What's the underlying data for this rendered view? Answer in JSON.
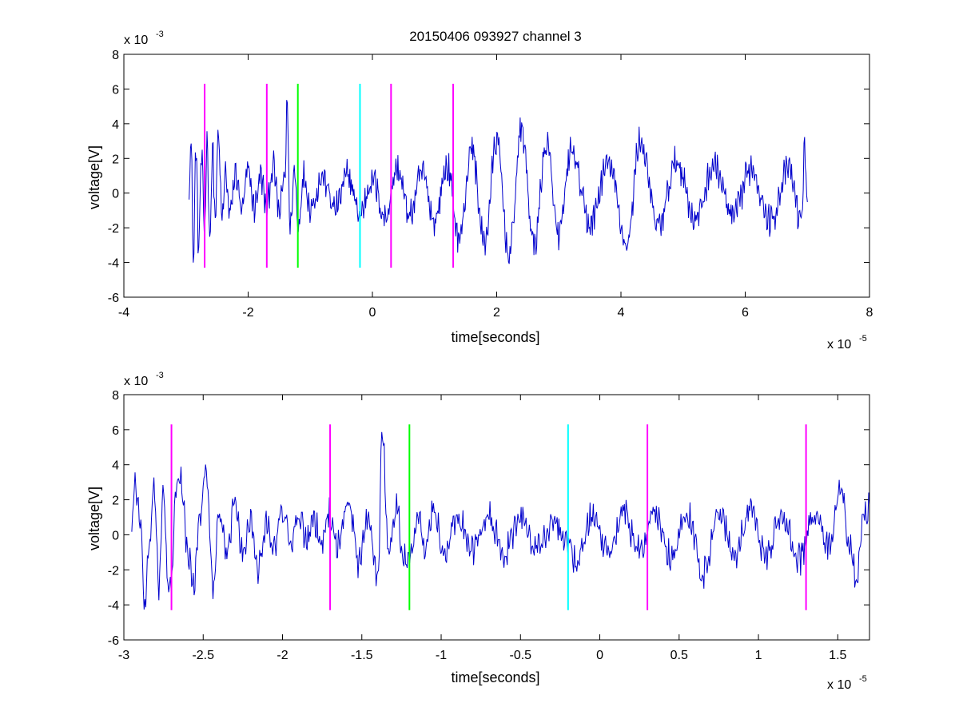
{
  "chart_data": [
    {
      "type": "line",
      "title": "20150406 093927 channel 3",
      "xlabel": "time[seconds]",
      "ylabel": "voltage[V]",
      "x_exponent_text": "x 10",
      "x_exponent": "-5",
      "y_exponent_text": "x 10",
      "y_exponent": "-3",
      "xlim": [
        -4,
        8
      ],
      "ylim": [
        -6,
        8
      ],
      "xticks": [
        "-4",
        "-2",
        "0",
        "2",
        "4",
        "6",
        "8"
      ],
      "yticks": [
        "-6",
        "-4",
        "-2",
        "0",
        "2",
        "4",
        "6",
        "8"
      ],
      "signal_color": "#0000cc",
      "series": [
        {
          "signal_x_range": [
            -2.95,
            7.0
          ],
          "control_points": [
            [
              -2.95,
              0.3
            ],
            [
              -2.92,
              3.1
            ],
            [
              -2.88,
              -3.9
            ],
            [
              -2.84,
              2.9
            ],
            [
              -2.8,
              -3.2
            ],
            [
              -2.75,
              2.0
            ],
            [
              -2.7,
              -2.2
            ],
            [
              -2.66,
              3.3
            ],
            [
              -2.62,
              -2.5
            ],
            [
              -2.57,
              2.5
            ],
            [
              -2.53,
              -1.5
            ],
            [
              -2.48,
              3.3
            ],
            [
              -2.42,
              -1.5
            ],
            [
              -2.36,
              1.2
            ],
            [
              -2.3,
              -1.3
            ],
            [
              -2.2,
              1.1
            ],
            [
              -2.1,
              -1.0
            ],
            [
              -2.0,
              1.3
            ],
            [
              -1.9,
              -0.8
            ],
            [
              -1.8,
              1.0
            ],
            [
              -1.7,
              -0.9
            ],
            [
              -1.6,
              1.6
            ],
            [
              -1.5,
              -1.1
            ],
            [
              -1.4,
              1.3
            ],
            [
              -1.37,
              5.7
            ],
            [
              -1.33,
              -2.0
            ],
            [
              -1.25,
              1.3
            ],
            [
              -1.2,
              -1.8
            ],
            [
              -1.1,
              1.0
            ],
            [
              -1.0,
              -0.8
            ],
            [
              -0.8,
              0.9
            ],
            [
              -0.6,
              -0.9
            ],
            [
              -0.4,
              1.0
            ],
            [
              -0.2,
              -1.2
            ],
            [
              0.0,
              0.8
            ],
            [
              0.2,
              -1.4
            ],
            [
              0.4,
              1.4
            ],
            [
              0.6,
              -1.3
            ],
            [
              0.8,
              1.2
            ],
            [
              1.0,
              -1.6
            ],
            [
              1.2,
              1.5
            ],
            [
              1.4,
              -2.6
            ],
            [
              1.6,
              2.6
            ],
            [
              1.8,
              -2.9
            ],
            [
              2.0,
              3.0
            ],
            [
              2.2,
              -3.6
            ],
            [
              2.4,
              3.7
            ],
            [
              2.6,
              -3.0
            ],
            [
              2.8,
              2.8
            ],
            [
              3.0,
              -2.5
            ],
            [
              3.2,
              2.4
            ],
            [
              3.5,
              -1.8
            ],
            [
              3.8,
              1.7
            ],
            [
              4.1,
              -3.0
            ],
            [
              4.3,
              3.0
            ],
            [
              4.6,
              -1.9
            ],
            [
              4.9,
              1.8
            ],
            [
              5.2,
              -1.5
            ],
            [
              5.5,
              1.6
            ],
            [
              5.8,
              -1.4
            ],
            [
              6.1,
              1.5
            ],
            [
              6.4,
              -1.6
            ],
            [
              6.7,
              1.4
            ],
            [
              6.9,
              -1.6
            ],
            [
              6.96,
              2.6
            ],
            [
              7.0,
              -0.5
            ]
          ]
        }
      ],
      "markers": [
        {
          "x": -2.7,
          "color": "#ff00ff"
        },
        {
          "x": -1.7,
          "color": "#ff00ff"
        },
        {
          "x": -1.2,
          "color": "#00ff00"
        },
        {
          "x": -0.2,
          "color": "#00ffff"
        },
        {
          "x": 0.3,
          "color": "#ff00ff"
        },
        {
          "x": 1.3,
          "color": "#ff00ff"
        }
      ],
      "marker_yrange": [
        -4.3,
        6.3
      ]
    },
    {
      "type": "line",
      "title": "",
      "xlabel": "time[seconds]",
      "ylabel": "voltage[V]",
      "x_exponent_text": "x 10",
      "x_exponent": "-5",
      "y_exponent_text": "x 10",
      "y_exponent": "-3",
      "xlim": [
        -3.0,
        1.7
      ],
      "ylim": [
        -6,
        8
      ],
      "xticks": [
        "-3",
        "-2.5",
        "-2",
        "-1.5",
        "-1",
        "-0.5",
        "0",
        "0.5",
        "1",
        "1.5"
      ],
      "xtick_values": [
        -3,
        -2.5,
        -2,
        -1.5,
        -1,
        -0.5,
        0,
        0.5,
        1,
        1.5
      ],
      "yticks": [
        "-6",
        "-4",
        "-2",
        "0",
        "2",
        "4",
        "6",
        "8"
      ],
      "signal_color": "#0000cc",
      "series": [
        {
          "signal_x_range": [
            -2.95,
            1.7
          ],
          "control_points": [
            [
              -2.95,
              0.3
            ],
            [
              -2.93,
              3.1
            ],
            [
              -2.9,
              1.0
            ],
            [
              -2.87,
              -3.9
            ],
            [
              -2.84,
              -1.0
            ],
            [
              -2.81,
              3.0
            ],
            [
              -2.78,
              -3.0
            ],
            [
              -2.75,
              2.2
            ],
            [
              -2.72,
              -3.3
            ],
            [
              -2.7,
              -2.5
            ],
            [
              -2.67,
              2.5
            ],
            [
              -2.64,
              3.2
            ],
            [
              -2.6,
              -1.0
            ],
            [
              -2.56,
              -2.9
            ],
            [
              -2.52,
              1.5
            ],
            [
              -2.48,
              3.7
            ],
            [
              -2.44,
              -3.0
            ],
            [
              -2.4,
              1.2
            ],
            [
              -2.35,
              -1.2
            ],
            [
              -2.3,
              2.2
            ],
            [
              -2.25,
              -1.0
            ],
            [
              -2.2,
              1.0
            ],
            [
              -2.15,
              -2.0
            ],
            [
              -2.1,
              0.8
            ],
            [
              -2.05,
              -0.8
            ],
            [
              -2.0,
              1.3
            ],
            [
              -1.95,
              -0.7
            ],
            [
              -1.9,
              1.2
            ],
            [
              -1.85,
              -0.5
            ],
            [
              -1.8,
              0.8
            ],
            [
              -1.75,
              -0.6
            ],
            [
              -1.7,
              1.2
            ],
            [
              -1.65,
              -0.6
            ],
            [
              -1.58,
              1.9
            ],
            [
              -1.52,
              -1.6
            ],
            [
              -1.46,
              1.2
            ],
            [
              -1.4,
              -2.4
            ],
            [
              -1.37,
              5.8
            ],
            [
              -1.33,
              -1.0
            ],
            [
              -1.28,
              1.6
            ],
            [
              -1.24,
              -1.0
            ],
            [
              -1.2,
              -1.8
            ],
            [
              -1.15,
              1.0
            ],
            [
              -1.1,
              -0.8
            ],
            [
              -1.05,
              1.5
            ],
            [
              -0.98,
              -1.2
            ],
            [
              -0.9,
              1.0
            ],
            [
              -0.8,
              -0.8
            ],
            [
              -0.7,
              0.9
            ],
            [
              -0.6,
              -1.0
            ],
            [
              -0.5,
              1.0
            ],
            [
              -0.4,
              -0.8
            ],
            [
              -0.3,
              0.7
            ],
            [
              -0.2,
              -0.3
            ],
            [
              -0.15,
              -1.5
            ],
            [
              -0.05,
              1.0
            ],
            [
              0.05,
              -1.0
            ],
            [
              0.15,
              1.3
            ],
            [
              0.25,
              -1.0
            ],
            [
              0.35,
              1.3
            ],
            [
              0.45,
              -1.2
            ],
            [
              0.55,
              1.1
            ],
            [
              0.65,
              -2.2
            ],
            [
              0.75,
              1.4
            ],
            [
              0.85,
              -1.1
            ],
            [
              0.95,
              1.4
            ],
            [
              1.05,
              -1.3
            ],
            [
              1.15,
              1.2
            ],
            [
              1.25,
              -1.5
            ],
            [
              1.35,
              1.0
            ],
            [
              1.45,
              -0.8
            ],
            [
              1.52,
              2.8
            ],
            [
              1.57,
              -0.8
            ],
            [
              1.62,
              -2.4
            ],
            [
              1.66,
              1.0
            ],
            [
              1.7,
              1.6
            ]
          ]
        }
      ],
      "markers": [
        {
          "x": -2.7,
          "color": "#ff00ff"
        },
        {
          "x": -1.7,
          "color": "#ff00ff"
        },
        {
          "x": -1.2,
          "color": "#00ff00"
        },
        {
          "x": -0.2,
          "color": "#00ffff"
        },
        {
          "x": 0.3,
          "color": "#ff00ff"
        },
        {
          "x": 1.3,
          "color": "#ff00ff"
        }
      ],
      "marker_yrange": [
        -4.3,
        6.3
      ]
    }
  ]
}
